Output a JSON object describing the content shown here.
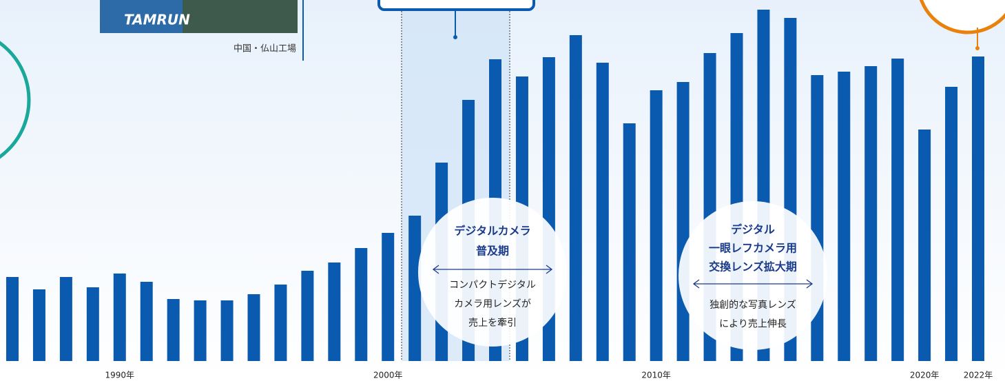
{
  "chart_data": {
    "type": "bar",
    "categories": [
      null,
      null,
      null,
      null,
      "1990年",
      null,
      null,
      null,
      null,
      null,
      null,
      null,
      null,
      null,
      "2000年",
      null,
      null,
      null,
      null,
      null,
      null,
      null,
      null,
      null,
      "2010年",
      null,
      null,
      null,
      null,
      null,
      null,
      null,
      null,
      null,
      "2020年",
      null,
      "2022年"
    ],
    "values": [
      122,
      104,
      122,
      107,
      127,
      115,
      90,
      88,
      88,
      97,
      111,
      131,
      143,
      164,
      186,
      211,
      288,
      379,
      438,
      413,
      441,
      473,
      433,
      345,
      393,
      405,
      447,
      476,
      510,
      498,
      415,
      420,
      428,
      439,
      336,
      398,
      442
    ],
    "color": "#0a5ab0",
    "ylim": [
      0,
      520
    ],
    "photo": {
      "sign": "TAMRUN",
      "caption": "中国・仏山工場"
    },
    "annotations": [
      {
        "title": [
          "デジタルカメラ",
          "普及期"
        ],
        "description": [
          "コンパクトデジタル",
          "カメラ用レンズが",
          "売上を牽引"
        ]
      },
      {
        "title": [
          "デジタル",
          "一眼レフカメラ用",
          "交換レンズ拡大期"
        ],
        "description": [
          "独創的な写真レンズ",
          "により売上伸長"
        ]
      }
    ]
  }
}
